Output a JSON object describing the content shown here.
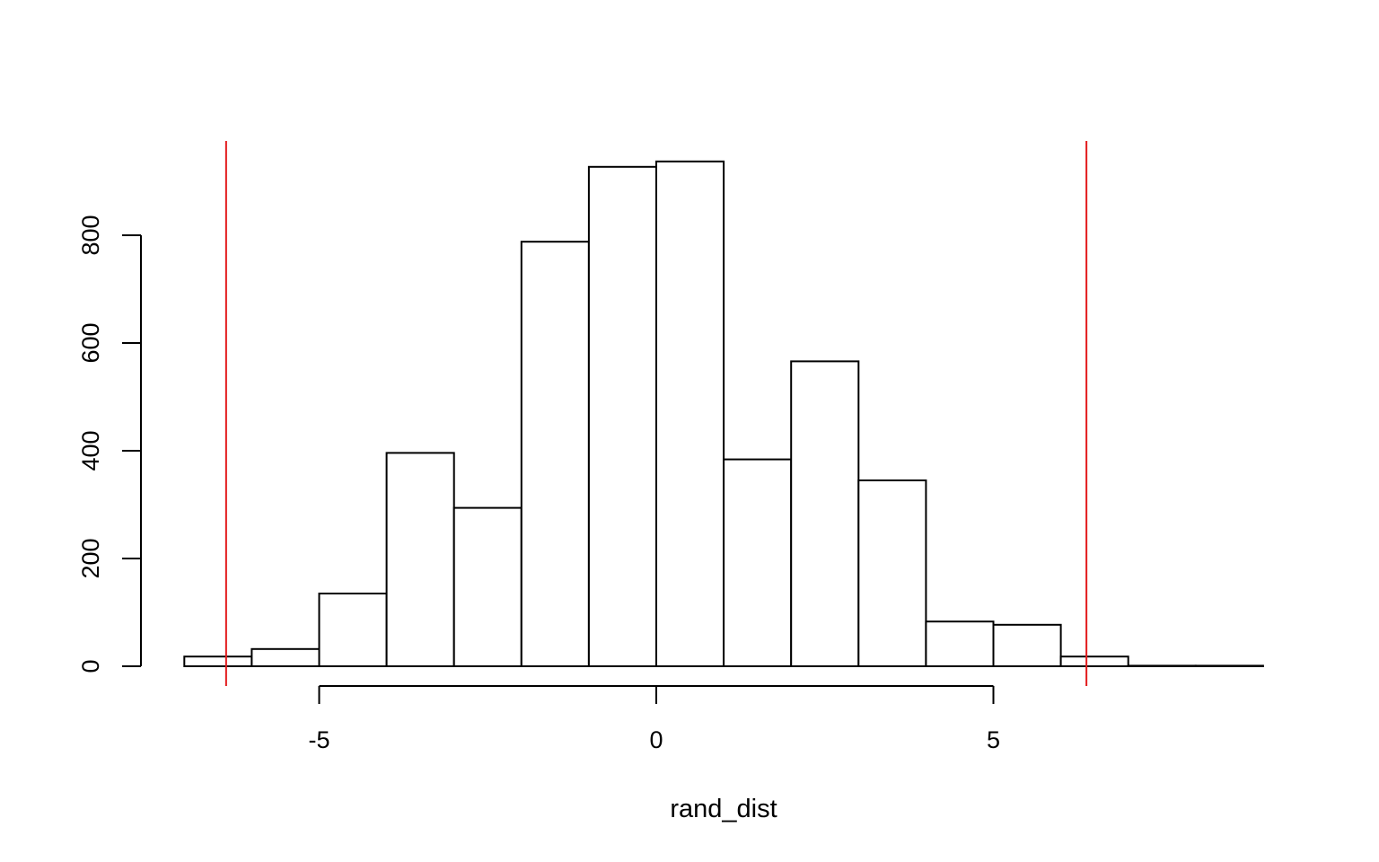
{
  "chart_data": {
    "type": "bar",
    "title": "",
    "xlabel": "rand_dist",
    "ylabel": "",
    "bins": [
      {
        "start": -7,
        "end": -6,
        "count": 18
      },
      {
        "start": -6,
        "end": -5,
        "count": 32
      },
      {
        "start": -5,
        "end": -4,
        "count": 135
      },
      {
        "start": -4,
        "end": -3,
        "count": 396
      },
      {
        "start": -3,
        "end": -2,
        "count": 294
      },
      {
        "start": -2,
        "end": -1,
        "count": 788
      },
      {
        "start": -1,
        "end": 0,
        "count": 927
      },
      {
        "start": 0,
        "end": 1,
        "count": 937
      },
      {
        "start": 1,
        "end": 2,
        "count": 384
      },
      {
        "start": 2,
        "end": 3,
        "count": 566
      },
      {
        "start": 3,
        "end": 4,
        "count": 345
      },
      {
        "start": 4,
        "end": 5,
        "count": 83
      },
      {
        "start": 5,
        "end": 6,
        "count": 77
      },
      {
        "start": 6,
        "end": 7,
        "count": 18
      },
      {
        "start": 7,
        "end": 8,
        "count": 1
      },
      {
        "start": 8,
        "end": 9,
        "count": 1
      }
    ],
    "xlim": [
      -7,
      9
    ],
    "ylim": [
      0,
      937
    ],
    "x_ticks": [
      -5,
      0,
      5
    ],
    "x_tick_labels": [
      "-5",
      "0",
      "5"
    ],
    "y_ticks": [
      0,
      200,
      400,
      600,
      800
    ],
    "y_tick_labels": [
      "0",
      "200",
      "400",
      "600",
      "800"
    ],
    "reference_lines": [
      {
        "x": -6.38,
        "color": "#e31a1c"
      },
      {
        "x": 6.38,
        "color": "#e31a1c"
      }
    ],
    "bar_fill": "#ffffff",
    "bar_stroke": "#000000",
    "grid": false,
    "legend": "none"
  }
}
